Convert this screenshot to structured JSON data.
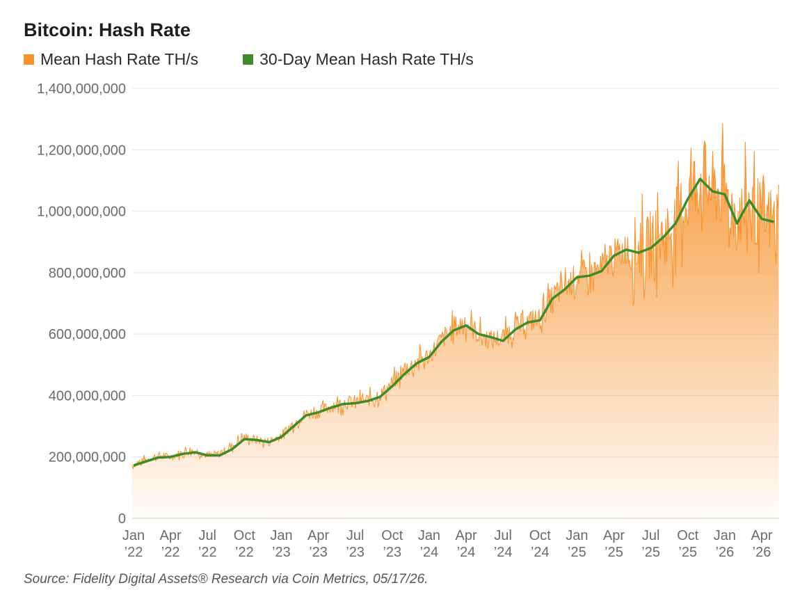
{
  "title": "Bitcoin: Hash Rate",
  "source": "Source: Fidelity Digital Assets® Research via Coin Metrics, 05/17/26.",
  "legend": [
    {
      "label": "Mean Hash Rate TH/s",
      "color": "#f7912a"
    },
    {
      "label": "30-Day Mean Hash Rate TH/s",
      "color": "#3d8b2a"
    }
  ],
  "chart_data": {
    "type": "area",
    "ylim": [
      0,
      1400000000
    ],
    "y_ticks": [
      "0",
      "200,000,000",
      "400,000,000",
      "600,000,000",
      "800,000,000",
      "1,000,000,000",
      "1,200,000,000",
      "1,400,000,000"
    ],
    "y_tick_values": [
      0,
      200000000,
      400000000,
      600000000,
      800000000,
      1000000000,
      1200000000,
      1400000000
    ],
    "x_ticks": [
      [
        "Jan",
        "’22"
      ],
      [
        "Apr",
        "’22"
      ],
      [
        "Jul",
        "’22"
      ],
      [
        "Oct",
        "’22"
      ],
      [
        "Jan",
        "’23"
      ],
      [
        "Apr",
        "’23"
      ],
      [
        "Jul",
        "’23"
      ],
      [
        "Oct",
        "’23"
      ],
      [
        "Jan",
        "’24"
      ],
      [
        "Apr",
        "’24"
      ],
      [
        "Jul",
        "’24"
      ],
      [
        "Oct",
        "’24"
      ],
      [
        "Jan",
        "’25"
      ],
      [
        "Apr",
        "’25"
      ],
      [
        "Jul",
        "’25"
      ],
      [
        "Oct",
        "’25"
      ],
      [
        "Jan",
        "’26"
      ],
      [
        "Apr",
        "’26"
      ]
    ],
    "grid": true,
    "series": [
      {
        "name": "Mean Hash Rate TH/s",
        "color": "#f7912a",
        "x": [
          "2022-01",
          "2022-02",
          "2022-03",
          "2022-04",
          "2022-05",
          "2022-06",
          "2022-07",
          "2022-08",
          "2022-09",
          "2022-10",
          "2022-11",
          "2022-12",
          "2023-01",
          "2023-02",
          "2023-03",
          "2023-04",
          "2023-05",
          "2023-06",
          "2023-07",
          "2023-08",
          "2023-09",
          "2023-10",
          "2023-11",
          "2023-12",
          "2024-01",
          "2024-02",
          "2024-03",
          "2024-04",
          "2024-05",
          "2024-06",
          "2024-07",
          "2024-08",
          "2024-09",
          "2024-10",
          "2024-11",
          "2024-12",
          "2025-01",
          "2025-02",
          "2025-03",
          "2025-04",
          "2025-05",
          "2025-06",
          "2025-07",
          "2025-08",
          "2025-09",
          "2025-10",
          "2025-11",
          "2025-12",
          "2026-01",
          "2026-02",
          "2026-03",
          "2026-04",
          "2026-05"
        ],
        "values": [
          175000000,
          190000000,
          205000000,
          200000000,
          215000000,
          220000000,
          205000000,
          210000000,
          235000000,
          265000000,
          255000000,
          250000000,
          270000000,
          310000000,
          340000000,
          345000000,
          365000000,
          375000000,
          380000000,
          385000000,
          400000000,
          440000000,
          480000000,
          510000000,
          530000000,
          580000000,
          620000000,
          640000000,
          600000000,
          580000000,
          590000000,
          620000000,
          640000000,
          650000000,
          720000000,
          750000000,
          790000000,
          800000000,
          810000000,
          860000000,
          880000000,
          880000000,
          880000000,
          920000000,
          960000000,
          1050000000,
          1110000000,
          1070000000,
          1060000000,
          970000000,
          1030000000,
          980000000,
          970000000
        ]
      },
      {
        "name": "30-Day Mean Hash Rate TH/s",
        "color": "#3d8b2a",
        "x": [
          "2022-01",
          "2022-02",
          "2022-03",
          "2022-04",
          "2022-05",
          "2022-06",
          "2022-07",
          "2022-08",
          "2022-09",
          "2022-10",
          "2022-11",
          "2022-12",
          "2023-01",
          "2023-02",
          "2023-03",
          "2023-04",
          "2023-05",
          "2023-06",
          "2023-07",
          "2023-08",
          "2023-09",
          "2023-10",
          "2023-11",
          "2023-12",
          "2024-01",
          "2024-02",
          "2024-03",
          "2024-04",
          "2024-05",
          "2024-06",
          "2024-07",
          "2024-08",
          "2024-09",
          "2024-10",
          "2024-11",
          "2024-12",
          "2025-01",
          "2025-02",
          "2025-03",
          "2025-04",
          "2025-05",
          "2025-06",
          "2025-07",
          "2025-08",
          "2025-09",
          "2025-10",
          "2025-11",
          "2025-12",
          "2026-01",
          "2026-02",
          "2026-03",
          "2026-04",
          "2026-05"
        ],
        "values": [
          172000000,
          185000000,
          198000000,
          200000000,
          210000000,
          215000000,
          205000000,
          205000000,
          225000000,
          258000000,
          255000000,
          248000000,
          265000000,
          300000000,
          335000000,
          345000000,
          360000000,
          372000000,
          375000000,
          382000000,
          395000000,
          430000000,
          470000000,
          505000000,
          525000000,
          575000000,
          612000000,
          628000000,
          600000000,
          590000000,
          578000000,
          615000000,
          638000000,
          645000000,
          715000000,
          745000000,
          785000000,
          790000000,
          805000000,
          855000000,
          875000000,
          865000000,
          880000000,
          915000000,
          960000000,
          1040000000,
          1105000000,
          1065000000,
          1055000000,
          960000000,
          1035000000,
          975000000,
          965000000
        ]
      }
    ]
  }
}
